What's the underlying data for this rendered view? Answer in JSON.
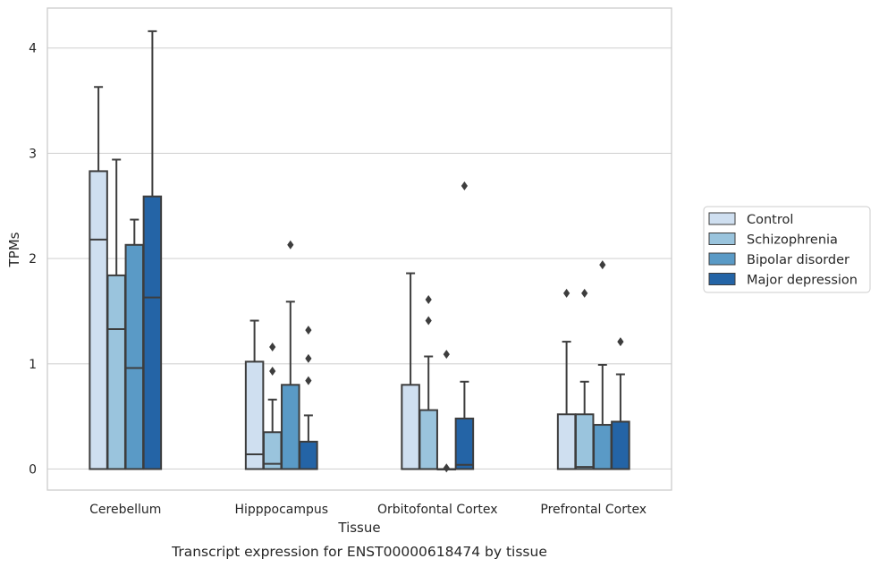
{
  "chart_data": {
    "type": "box",
    "caption": "Transcript expression for ENST00000618474 by tissue",
    "xlabel": "Tissue",
    "ylabel": "TPMs",
    "ylim": [
      -0.2,
      4.38
    ],
    "yticks": [
      0,
      1,
      2,
      3,
      4
    ],
    "grid": "horizontal",
    "legend_position": "right",
    "categories": [
      "Cerebellum",
      "Hipppocampus",
      "Orbitofontal Cortex",
      "Prefrontal Cortex"
    ],
    "series": [
      {
        "name": "Control",
        "color": "#cfdff0",
        "boxes": [
          {
            "low": 0,
            "q1": 0,
            "median": 2.18,
            "q3": 2.83,
            "high": 3.63,
            "outliers": []
          },
          {
            "low": 0,
            "q1": 0,
            "median": 0.14,
            "q3": 1.02,
            "high": 1.41,
            "outliers": []
          },
          {
            "low": 0,
            "q1": 0,
            "median": 0,
            "q3": 0.8,
            "high": 1.86,
            "outliers": []
          },
          {
            "low": 0,
            "q1": 0,
            "median": 0,
            "q3": 0.52,
            "high": 1.21,
            "outliers": [
              1.67
            ]
          }
        ]
      },
      {
        "name": "Schizophrenia",
        "color": "#9ac4dd",
        "boxes": [
          {
            "low": 0,
            "q1": 0,
            "median": 1.33,
            "q3": 1.84,
            "high": 2.94,
            "outliers": []
          },
          {
            "low": 0,
            "q1": 0,
            "median": 0.05,
            "q3": 0.35,
            "high": 0.66,
            "outliers": [
              0.93,
              1.16
            ]
          },
          {
            "low": 0,
            "q1": 0,
            "median": 0,
            "q3": 0.56,
            "high": 1.07,
            "outliers": [
              1.41,
              1.61
            ]
          },
          {
            "low": 0,
            "q1": 0,
            "median": 0.02,
            "q3": 0.52,
            "high": 0.83,
            "outliers": [
              1.67
            ]
          }
        ]
      },
      {
        "name": "Bipolar disorder",
        "color": "#5a9ac6",
        "boxes": [
          {
            "low": 0,
            "q1": 0,
            "median": 0.96,
            "q3": 2.13,
            "high": 2.37,
            "outliers": []
          },
          {
            "low": 0,
            "q1": 0,
            "median": 0,
            "q3": 0.8,
            "high": 1.59,
            "outliers": [
              2.13
            ]
          },
          {
            "low": 0,
            "q1": 0,
            "median": 0,
            "q3": 0,
            "high": 0,
            "outliers": [
              0.01,
              1.09
            ]
          },
          {
            "low": 0,
            "q1": 0,
            "median": 0,
            "q3": 0.42,
            "high": 0.99,
            "outliers": [
              1.94
            ]
          }
        ]
      },
      {
        "name": "Major depression",
        "color": "#2464a6",
        "boxes": [
          {
            "low": 0,
            "q1": 0,
            "median": 1.63,
            "q3": 2.59,
            "high": 4.16,
            "outliers": []
          },
          {
            "low": 0,
            "q1": 0,
            "median": 0,
            "q3": 0.26,
            "high": 0.51,
            "outliers": [
              0.84,
              1.05,
              1.32
            ]
          },
          {
            "low": 0,
            "q1": 0,
            "median": 0.04,
            "q3": 0.48,
            "high": 0.83,
            "outliers": [
              2.69
            ]
          },
          {
            "low": 0,
            "q1": 0,
            "median": 0,
            "q3": 0.45,
            "high": 0.9,
            "outliers": [
              1.21
            ]
          }
        ]
      }
    ]
  }
}
